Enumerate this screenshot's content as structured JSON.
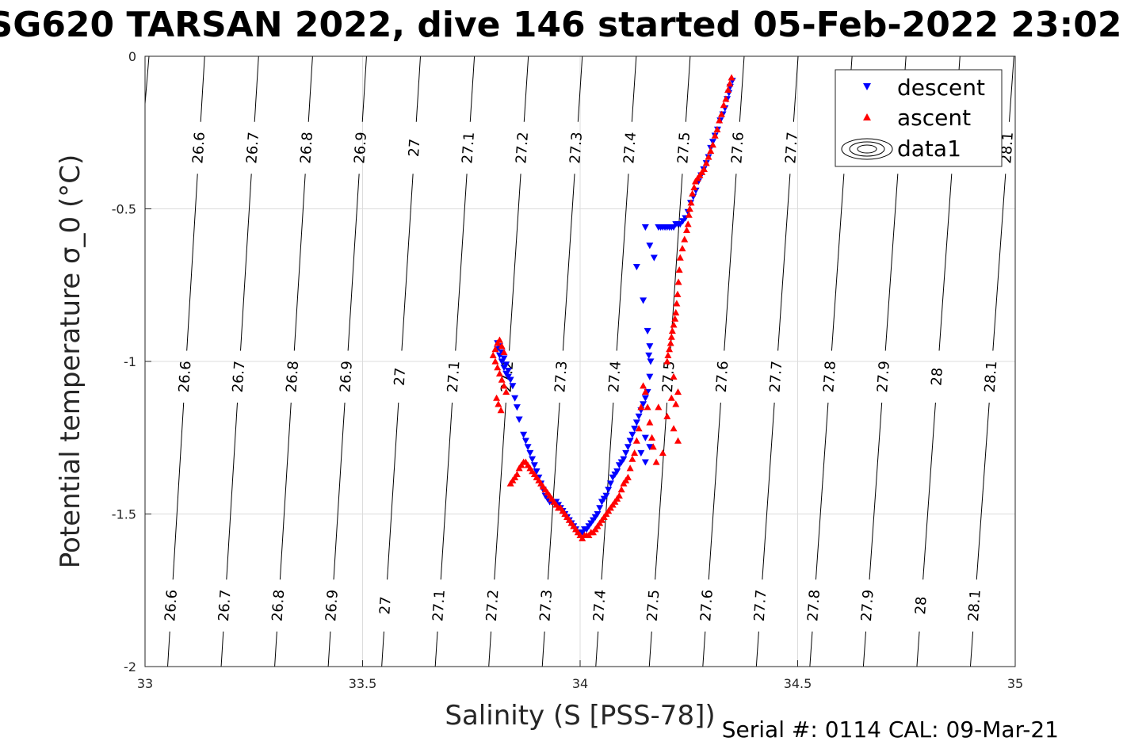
{
  "footer": "Serial #: 0114  CAL: 09-Mar-21",
  "chart_data": {
    "type": "scatter",
    "title": "SG620 TARSAN 2022, dive 146 started 05-Feb-2022 23:02",
    "xlabel": "Salinity (S [PSS-78])",
    "ylabel": "Potential temperature σ_0 (°C)",
    "xlim": [
      33,
      35
    ],
    "ylim": [
      -2,
      0
    ],
    "xticks": [
      "33",
      "33.5",
      "34",
      "34.5",
      "35"
    ],
    "yticks": [
      "0",
      "-0.5",
      "-1",
      "-1.5",
      "-2"
    ],
    "grid": true,
    "legend_position": "top-right",
    "legend": [
      "descent",
      "ascent",
      "data1"
    ],
    "isopycnals": {
      "values": [
        26.6,
        26.7,
        26.8,
        26.9,
        27.0,
        27.1,
        27.2,
        27.3,
        27.4,
        27.5,
        27.6,
        27.7,
        27.8,
        27.9,
        28.0,
        28.1
      ],
      "labels": [
        "26.6",
        "26.7",
        "26.8",
        "26.9",
        "27",
        "27.1",
        "27.2",
        "27.3",
        "27.4",
        "27.5",
        "27.6",
        "27.7",
        "27.8",
        "27.9",
        "28",
        "28.1"
      ],
      "salinity_at_0C": [
        33.137,
        33.261,
        33.385,
        33.509,
        33.633,
        33.757,
        33.881,
        34.005,
        34.129,
        34.253,
        34.377,
        34.501,
        34.625,
        34.749,
        34.873,
        34.997
      ],
      "salinity_at_minus2C": [
        33.052,
        33.175,
        33.298,
        33.421,
        33.544,
        33.667,
        33.79,
        33.913,
        34.036,
        34.159,
        34.282,
        34.405,
        34.528,
        34.651,
        34.774,
        34.897
      ],
      "label_temps": [
        -0.3,
        -1.05,
        -1.8
      ]
    },
    "series": [
      {
        "name": "descent",
        "color": "#0000ff",
        "marker": "triangle-down",
        "x": [
          34.35,
          34.345,
          34.342,
          34.338,
          34.333,
          34.328,
          34.322,
          34.316,
          34.31,
          34.305,
          34.3,
          34.295,
          34.29,
          34.284,
          34.278,
          34.272,
          34.266,
          34.26,
          34.254,
          34.248,
          34.242,
          34.236,
          34.23,
          34.225,
          34.22,
          34.215,
          34.21,
          34.205,
          34.2,
          34.195,
          34.19,
          34.185,
          34.18,
          34.15,
          34.16,
          34.17,
          34.13,
          34.145,
          34.155,
          34.16,
          34.158,
          34.162,
          34.16,
          34.155,
          34.15,
          34.145,
          34.14,
          34.135,
          34.13,
          34.125,
          34.12,
          34.115,
          34.11,
          34.105,
          34.1,
          34.095,
          34.09,
          34.085,
          34.08,
          34.075,
          34.07,
          34.065,
          34.06,
          34.055,
          34.05,
          34.045,
          34.04,
          34.035,
          34.03,
          34.025,
          34.02,
          34.015,
          34.01,
          34.005,
          34.0,
          33.995,
          33.99,
          33.985,
          33.98,
          33.975,
          33.97,
          33.965,
          33.96,
          33.955,
          33.95,
          33.945,
          33.94,
          33.935,
          33.93,
          33.925,
          33.92,
          33.915,
          33.91,
          33.905,
          33.9,
          33.895,
          33.89,
          33.885,
          33.88,
          33.875,
          33.87,
          33.86,
          33.855,
          33.85,
          33.845,
          33.84,
          33.835,
          33.83,
          33.825,
          33.82,
          33.815,
          33.81,
          33.81,
          33.815,
          33.82,
          33.825,
          33.83,
          33.835,
          34.14,
          34.15,
          34.16,
          34.15
        ],
        "y": [
          -0.08,
          -0.1,
          -0.12,
          -0.14,
          -0.17,
          -0.19,
          -0.21,
          -0.24,
          -0.26,
          -0.28,
          -0.3,
          -0.33,
          -0.35,
          -0.37,
          -0.39,
          -0.41,
          -0.44,
          -0.46,
          -0.48,
          -0.51,
          -0.53,
          -0.54,
          -0.55,
          -0.55,
          -0.55,
          -0.56,
          -0.56,
          -0.56,
          -0.56,
          -0.56,
          -0.56,
          -0.56,
          -0.56,
          -0.56,
          -0.62,
          -0.66,
          -0.69,
          -0.8,
          -0.9,
          -0.95,
          -0.98,
          -1.0,
          -1.05,
          -1.1,
          -1.12,
          -1.14,
          -1.16,
          -1.18,
          -1.2,
          -1.22,
          -1.24,
          -1.26,
          -1.28,
          -1.3,
          -1.32,
          -1.33,
          -1.34,
          -1.36,
          -1.37,
          -1.38,
          -1.4,
          -1.42,
          -1.44,
          -1.45,
          -1.46,
          -1.48,
          -1.5,
          -1.51,
          -1.52,
          -1.53,
          -1.54,
          -1.55,
          -1.55,
          -1.56,
          -1.56,
          -1.56,
          -1.55,
          -1.54,
          -1.53,
          -1.52,
          -1.51,
          -1.5,
          -1.49,
          -1.48,
          -1.47,
          -1.46,
          -1.46,
          -1.46,
          -1.46,
          -1.45,
          -1.44,
          -1.42,
          -1.4,
          -1.38,
          -1.36,
          -1.34,
          -1.32,
          -1.3,
          -1.28,
          -1.26,
          -1.24,
          -1.19,
          -1.15,
          -1.12,
          -1.08,
          -1.06,
          -1.05,
          -1.04,
          -1.02,
          -1.0,
          -0.98,
          -0.96,
          -0.94,
          -0.95,
          -0.97,
          -0.99,
          -1.01,
          -1.03,
          -1.3,
          -1.33,
          -1.28,
          -1.25
        ]
      },
      {
        "name": "ascent",
        "color": "#ff0000",
        "marker": "triangle-up",
        "x": [
          34.348,
          34.344,
          34.34,
          34.335,
          34.33,
          34.325,
          34.32,
          34.315,
          34.31,
          34.305,
          34.3,
          34.295,
          34.29,
          34.285,
          34.28,
          34.275,
          34.27,
          34.265,
          34.262,
          34.258,
          34.255,
          34.252,
          34.25,
          34.248,
          34.245,
          34.24,
          34.235,
          34.23,
          34.228,
          34.226,
          34.224,
          34.222,
          34.22,
          34.218,
          34.215,
          34.212,
          34.21,
          34.208,
          34.205,
          34.202,
          34.2,
          34.215,
          34.225,
          34.21,
          34.22,
          34.18,
          34.2,
          34.215,
          34.225,
          34.19,
          34.175,
          34.168,
          34.165,
          34.16,
          34.155,
          34.15,
          34.145,
          34.14,
          34.135,
          34.13,
          34.125,
          34.12,
          34.115,
          34.11,
          34.105,
          34.1,
          34.095,
          34.09,
          34.085,
          34.08,
          34.075,
          34.07,
          34.065,
          34.06,
          34.055,
          34.05,
          34.045,
          34.04,
          34.035,
          34.03,
          34.025,
          34.02,
          34.015,
          34.01,
          34.005,
          34.0,
          33.995,
          33.99,
          33.985,
          33.98,
          33.975,
          33.97,
          33.965,
          33.96,
          33.955,
          33.95,
          33.945,
          33.94,
          33.935,
          33.93,
          33.925,
          33.92,
          33.915,
          33.91,
          33.905,
          33.9,
          33.895,
          33.89,
          33.885,
          33.88,
          33.875,
          33.87,
          33.865,
          33.86,
          33.855,
          33.85,
          33.845,
          33.84,
          33.83,
          33.825,
          33.82,
          33.815,
          33.81,
          33.805,
          33.8,
          33.805,
          33.81,
          33.815,
          33.82,
          33.825,
          33.808,
          33.812,
          33.818
        ],
        "y": [
          -0.07,
          -0.09,
          -0.11,
          -0.14,
          -0.16,
          -0.19,
          -0.21,
          -0.24,
          -0.26,
          -0.29,
          -0.31,
          -0.33,
          -0.35,
          -0.37,
          -0.38,
          -0.39,
          -0.4,
          -0.41,
          -0.43,
          -0.45,
          -0.48,
          -0.5,
          -0.52,
          -0.55,
          -0.57,
          -0.6,
          -0.63,
          -0.66,
          -0.7,
          -0.74,
          -0.78,
          -0.81,
          -0.84,
          -0.86,
          -0.88,
          -0.9,
          -0.92,
          -0.94,
          -0.96,
          -0.98,
          -1.0,
          -1.05,
          -1.1,
          -1.12,
          -1.14,
          -1.15,
          -1.18,
          -1.22,
          -1.26,
          -1.3,
          -1.33,
          -1.28,
          -1.25,
          -1.2,
          -1.15,
          -1.1,
          -1.08,
          -1.15,
          -1.22,
          -1.26,
          -1.3,
          -1.32,
          -1.35,
          -1.38,
          -1.39,
          -1.4,
          -1.42,
          -1.44,
          -1.45,
          -1.46,
          -1.47,
          -1.48,
          -1.49,
          -1.5,
          -1.51,
          -1.52,
          -1.53,
          -1.54,
          -1.55,
          -1.56,
          -1.56,
          -1.57,
          -1.57,
          -1.57,
          -1.58,
          -1.57,
          -1.56,
          -1.55,
          -1.54,
          -1.53,
          -1.52,
          -1.51,
          -1.5,
          -1.49,
          -1.48,
          -1.48,
          -1.47,
          -1.46,
          -1.45,
          -1.44,
          -1.43,
          -1.42,
          -1.41,
          -1.4,
          -1.39,
          -1.38,
          -1.37,
          -1.36,
          -1.35,
          -1.34,
          -1.33,
          -1.33,
          -1.34,
          -1.35,
          -1.37,
          -1.38,
          -1.39,
          -1.4,
          -1.1,
          -1.08,
          -1.06,
          -1.04,
          -1.02,
          -1.0,
          -0.98,
          -0.96,
          -0.94,
          -0.93,
          -0.95,
          -0.97,
          -1.12,
          -1.14,
          -1.16
        ]
      }
    ]
  }
}
